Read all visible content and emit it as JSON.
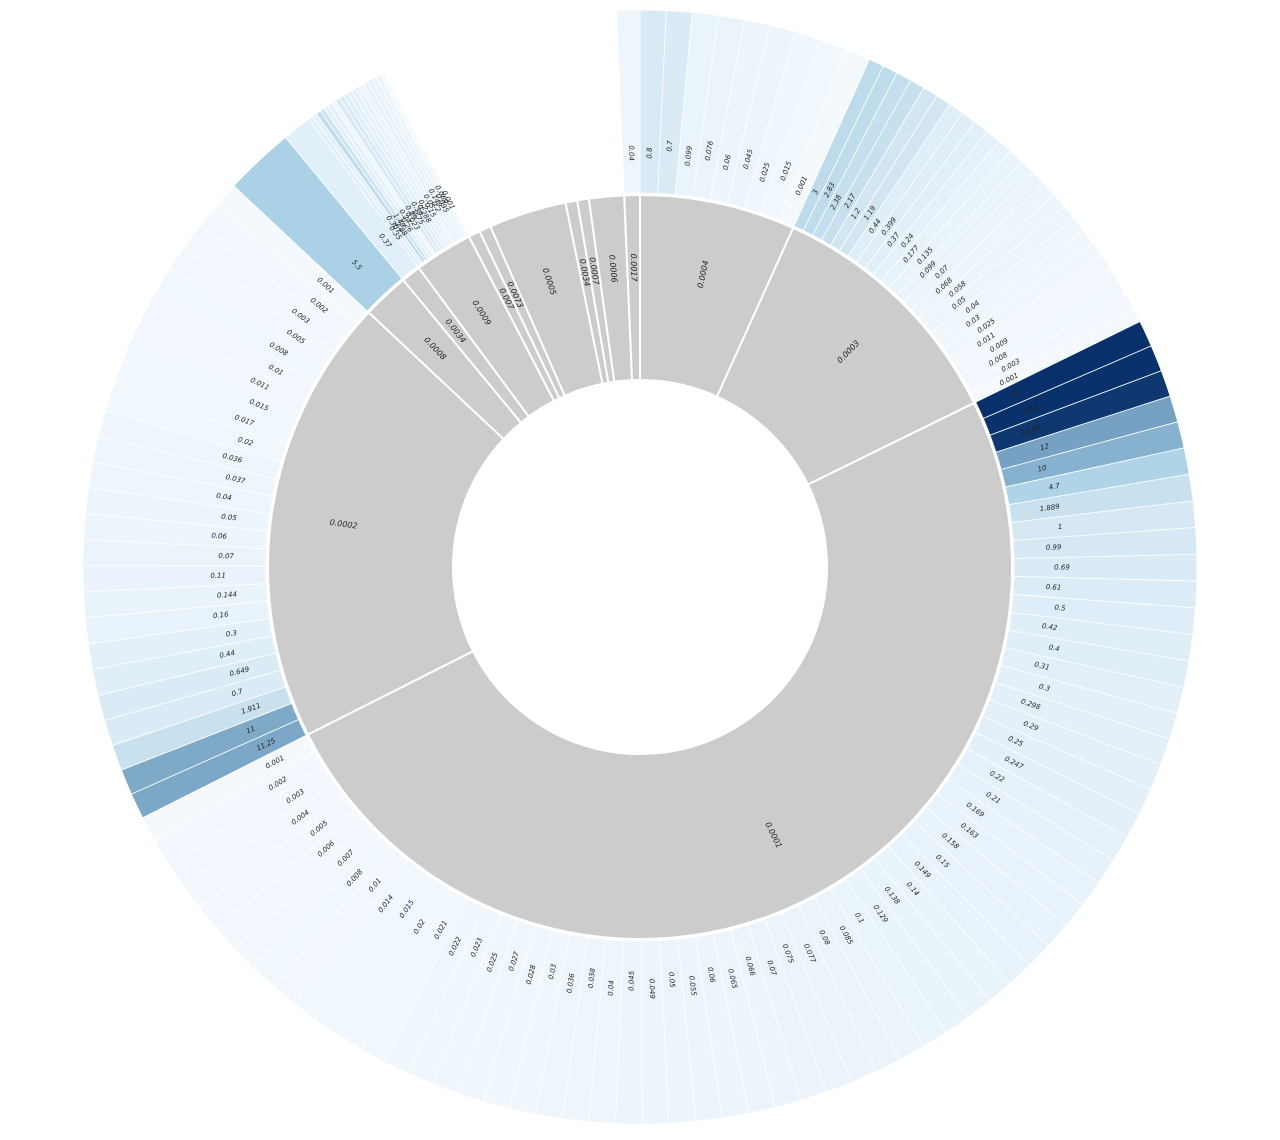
{
  "chart_data": {
    "type": "sunburst",
    "title": "",
    "inner_ring": [
      {
        "label": "0.0004",
        "weight": 4.0
      },
      {
        "label": "0.0003",
        "weight": 6.5
      },
      {
        "label": "0.0001",
        "weight": 29.5
      },
      {
        "label": "0.0002",
        "weight": 11.5
      },
      {
        "label": "0.0008",
        "weight": 1.2
      },
      {
        "label": "0.0034",
        "weight": 0.5
      },
      {
        "label": "0.0009",
        "weight": 1.5
      },
      {
        "label": "0.007",
        "weight": 0.3
      },
      {
        "label": "0.0073",
        "weight": 0.3
      },
      {
        "label": "0.0005",
        "weight": 2.0
      },
      {
        "label": "0.0034",
        "weight": 0.3
      },
      {
        "label": "0.0007",
        "weight": 0.3
      },
      {
        "label": "0.0006",
        "weight": 0.9
      },
      {
        "label": "0.0017",
        "weight": 0.4
      }
    ],
    "outer_ring": [
      {
        "parent": 0,
        "items": [
          "0.8",
          "0.7",
          "0.099",
          "0.076",
          "0.06",
          "0.045",
          "0.025",
          "0.015",
          "0.001"
        ]
      },
      {
        "parent": 1,
        "items": [
          "3",
          "2.83",
          "2.38",
          "2.17",
          "1.2",
          "1.19",
          "0.44",
          "0.399",
          "0.37",
          "0.24",
          "0.177",
          "0.135",
          "0.099",
          "0.07",
          "0.068",
          "0.058",
          "0.05",
          "0.04",
          "0.03",
          "0.025",
          "0.011",
          "0.009",
          "0.008",
          "0.003",
          "0.001"
        ]
      },
      {
        "parent": 2,
        "items": [
          "30",
          "29.9",
          "28.69",
          "12",
          "10",
          "4.7",
          "1.889",
          "1",
          "0.99",
          "0.69",
          "0.61",
          "0.5",
          "0.42",
          "0.4",
          "0.31",
          "0.3",
          "0.298",
          "0.29",
          "0.25",
          "0.247",
          "0.22",
          "0.21",
          "0.169",
          "0.163",
          "0.158",
          "0.15",
          "0.149",
          "0.14",
          "0.138",
          "0.129",
          "0.1",
          "0.085",
          "0.08",
          "0.077",
          "0.075",
          "0.07",
          "0.066",
          "0.065",
          "0.06",
          "0.055",
          "0.05",
          "0.049",
          "0.045",
          "0.04",
          "0.038",
          "0.036",
          "0.03",
          "0.028",
          "0.027",
          "0.025",
          "0.023",
          "0.022",
          "0.021",
          "0.02",
          "0.015",
          "0.014",
          "0.01",
          "0.008",
          "0.007",
          "0.006",
          "0.005",
          "0.004",
          "0.003",
          "0.002",
          "0.001"
        ]
      },
      {
        "parent": 3,
        "items": [
          "11.25",
          "11",
          "1.911",
          "0.7",
          "0.649",
          "0.44",
          "0.3",
          "0.16",
          "0.144",
          "0.11",
          "0.07",
          "0.06",
          "0.05",
          "0.04",
          "0.037",
          "0.036",
          "0.02",
          "0.017",
          "0.015",
          "0.011",
          "0.01",
          "0.008",
          "0.005",
          "0.003",
          "0.002",
          "0.001"
        ]
      },
      {
        "parent": 4,
        "items": [
          "5.5"
        ]
      },
      {
        "parent": 5,
        "items": [
          "0.37"
        ]
      },
      {
        "parent": 6,
        "items": [
          "0.35",
          "0.307",
          "2.88",
          "1.49",
          "0.26",
          "0.24",
          "0.023",
          "0.89",
          "0.75",
          "0.39",
          "0.288",
          "0.2",
          "0.15",
          "0.05",
          "0.2",
          "0.149",
          "0.095",
          "0.069",
          "0.001"
        ]
      },
      {
        "parent": 13,
        "items": [
          "0.04"
        ]
      }
    ],
    "color_scale": {
      "min": 0.001,
      "max": 30,
      "low": "#f4f9fe",
      "mid": "#9ecae1",
      "high": "#08306b"
    },
    "inner_color": "#cccccc"
  }
}
